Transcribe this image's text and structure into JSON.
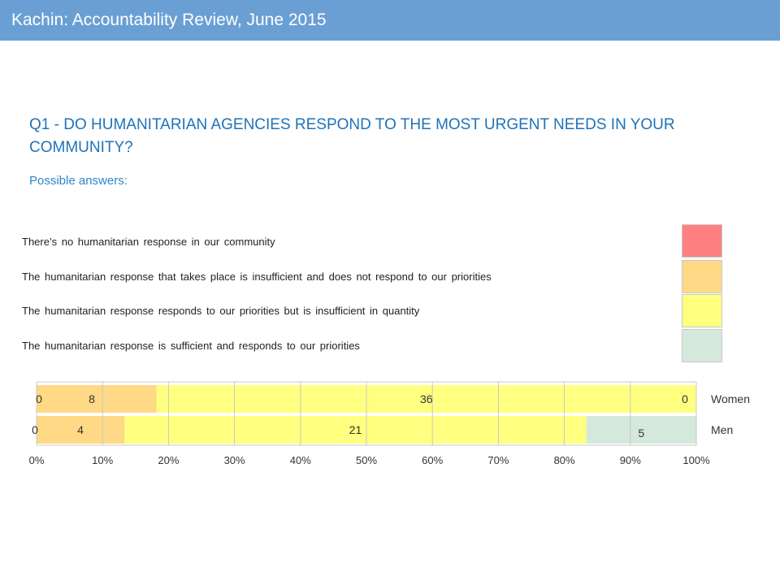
{
  "header": {
    "title": "Kachin: Accountability Review, June 2015"
  },
  "question": "Q1 - DO HUMANITARIAN AGENCIES RESPOND TO THE MOST URGENT NEEDS IN YOUR COMMUNITY?",
  "subtitle": "Possible answers:",
  "answers": [
    {
      "label": "There’s no humanitarian response in our community",
      "color": "#ff8080"
    },
    {
      "label": "The humanitarian response that takes place is insufficient and does not respond to our priorities",
      "color": "#ffd985"
    },
    {
      "label": "The humanitarian response responds to our priorities but is insufficient in quantity",
      "color": "#ffff80"
    },
    {
      "label": "The humanitarian response is sufficient and responds to our priorities",
      "color": "#d5e8dc"
    }
  ],
  "chart_data": {
    "type": "bar",
    "orientation": "horizontal",
    "stacked": "percent",
    "categories": [
      "Women",
      "Men"
    ],
    "series": [
      {
        "values": [
          0,
          0
        ],
        "color": "#ff8080"
      },
      {
        "values": [
          8,
          4
        ],
        "color": "#ffd985"
      },
      {
        "values": [
          36,
          21
        ],
        "color": "#ffff80"
      },
      {
        "values": [
          0,
          5
        ],
        "color": "#d5e8dc"
      }
    ],
    "x_ticks": [
      "0%",
      "10%",
      "20%",
      "30%",
      "40%",
      "50%",
      "60%",
      "70%",
      "80%",
      "90%",
      "100%"
    ],
    "xlim": [
      0,
      100
    ],
    "grid": true,
    "legend": "none"
  }
}
